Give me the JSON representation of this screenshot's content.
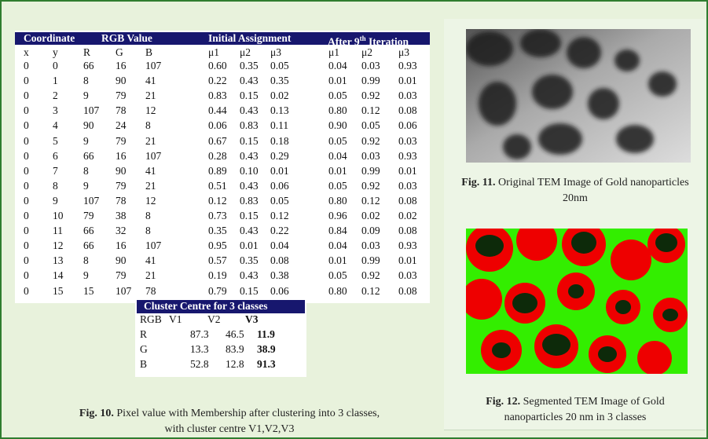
{
  "table": {
    "groups": [
      "Coordinate",
      "RGB Value",
      "Initial Assignment",
      {
        "pre": "After 9",
        "sup": "th",
        "post": " Iteration"
      }
    ],
    "columns": [
      "x",
      "y",
      "R",
      "G",
      "B",
      "μ1",
      "μ2",
      "μ3",
      "μ1",
      "μ2",
      "μ3"
    ],
    "rows": [
      [
        "0",
        "0",
        "66",
        "16",
        "107",
        "0.60",
        "0.35",
        "0.05",
        "0.04",
        "0.03",
        "0.93"
      ],
      [
        "0",
        "1",
        "8",
        "90",
        "41",
        "0.22",
        "0.43",
        "0.35",
        "0.01",
        "0.99",
        "0.01"
      ],
      [
        "0",
        "2",
        "9",
        "79",
        "21",
        "0.83",
        "0.15",
        "0.02",
        "0.05",
        "0.92",
        "0.03"
      ],
      [
        "0",
        "3",
        "107",
        "78",
        "12",
        "0.44",
        "0.43",
        "0.13",
        "0.80",
        "0.12",
        "0.08"
      ],
      [
        "0",
        "4",
        "90",
        "24",
        "8",
        "0.06",
        "0.83",
        "0.11",
        "0.90",
        "0.05",
        "0.06"
      ],
      [
        "0",
        "5",
        "9",
        "79",
        "21",
        "0.67",
        "0.15",
        "0.18",
        "0.05",
        "0.92",
        "0.03"
      ],
      [
        "0",
        "6",
        "66",
        "16",
        "107",
        "0.28",
        "0.43",
        "0.29",
        "0.04",
        "0.03",
        "0.93"
      ],
      [
        "0",
        "7",
        "8",
        "90",
        "41",
        "0.89",
        "0.10",
        "0.01",
        "0.01",
        "0.99",
        "0.01"
      ],
      [
        "0",
        "8",
        "9",
        "79",
        "21",
        "0.51",
        "0.43",
        "0.06",
        "0.05",
        "0.92",
        "0.03"
      ],
      [
        "0",
        "9",
        "107",
        "78",
        "12",
        "0.12",
        "0.83",
        "0.05",
        "0.80",
        "0.12",
        "0.08"
      ],
      [
        "0",
        "10",
        "79",
        "38",
        "8",
        "0.73",
        "0.15",
        "0.12",
        "0.96",
        "0.02",
        "0.02"
      ],
      [
        "0",
        "11",
        "66",
        "32",
        "8",
        "0.35",
        "0.43",
        "0.22",
        "0.84",
        "0.09",
        "0.08"
      ],
      [
        "0",
        "12",
        "66",
        "16",
        "107",
        "0.95",
        "0.01",
        "0.04",
        "0.04",
        "0.03",
        "0.93"
      ],
      [
        "0",
        "13",
        "8",
        "90",
        "41",
        "0.57",
        "0.35",
        "0.08",
        "0.01",
        "0.99",
        "0.01"
      ],
      [
        "0",
        "14",
        "9",
        "79",
        "21",
        "0.19",
        "0.43",
        "0.38",
        "0.05",
        "0.92",
        "0.03"
      ],
      [
        "0",
        "15",
        "15",
        "107",
        "78",
        "0.79",
        "0.15",
        "0.06",
        "0.80",
        "0.12",
        "0.08"
      ]
    ]
  },
  "cluster_table": {
    "title": "Cluster Centre for 3 classes",
    "columns": [
      "RGB",
      "V1",
      "V2",
      "V3"
    ],
    "rows": [
      [
        "R",
        "87.3",
        "46.5",
        "11.9"
      ],
      [
        "G",
        "13.3",
        "83.9",
        "38.9"
      ],
      [
        "B",
        "52.8",
        "12.8",
        "91.3"
      ]
    ]
  },
  "captions": [
    {
      "label": "Fig. 10.",
      "text": " Pixel value with Membership after clustering into 3 classes, with cluster centre V1,V2,V3"
    },
    {
      "label": "Fig. 11.",
      "text": " Original TEM Image of  Gold nanoparticles 20nm"
    },
    {
      "label": "Fig. 12.",
      "text": " Segmented TEM Image of Gold nanoparticles 20 nm  in 3 classes"
    }
  ]
}
